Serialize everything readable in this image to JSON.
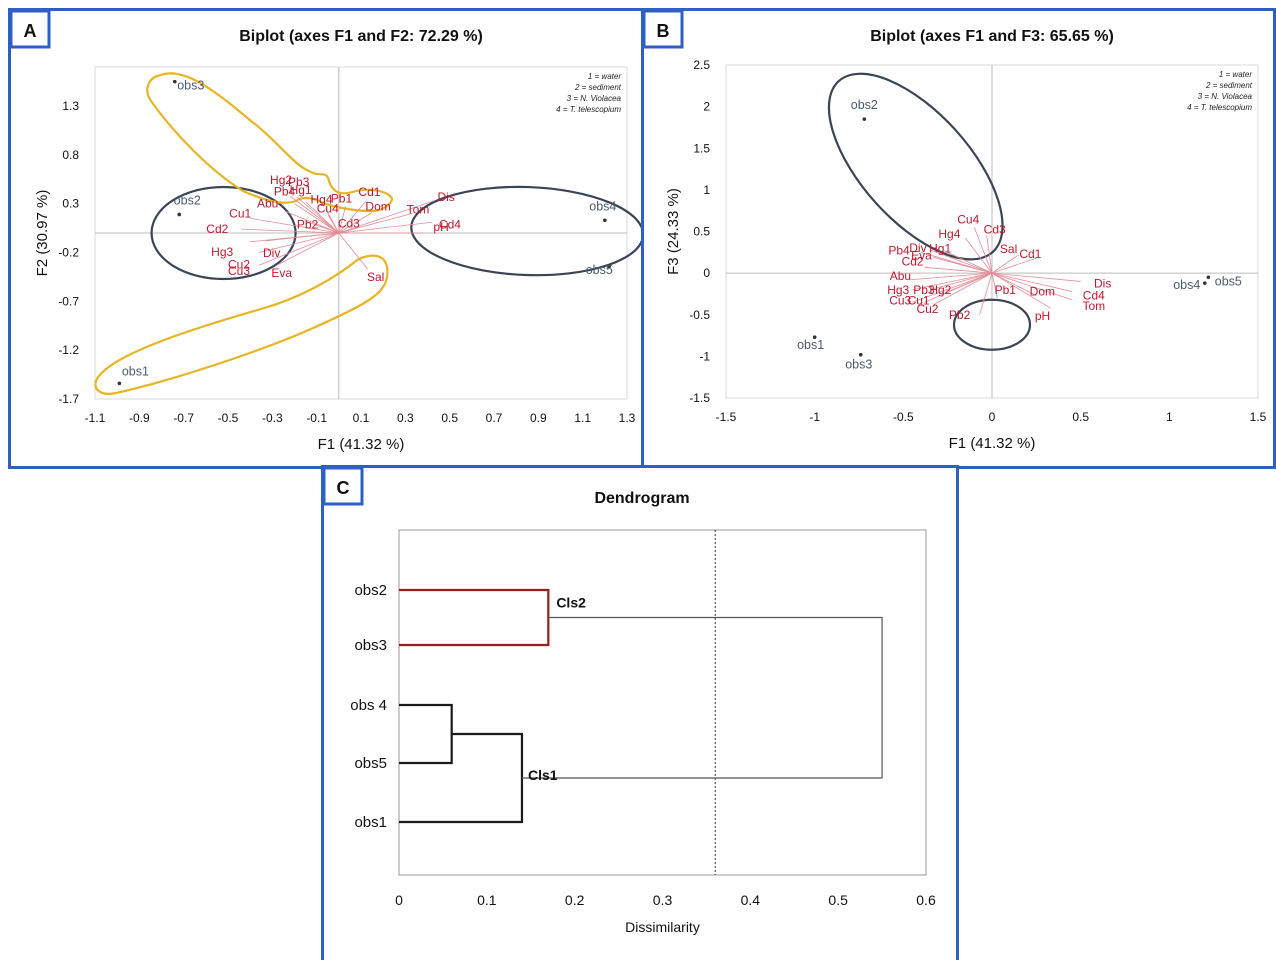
{
  "panels": {
    "A": {
      "letter": "A",
      "title": "Biplot (axes F1 and F2: 72.29 %)",
      "xlabel": "F1 (41.32 %)",
      "ylabel": "F2 (30.97 %)",
      "legend": [
        "1 = water",
        "2 = sediment",
        "3 = N. Violacea",
        "4 = T. telescopium"
      ],
      "xticks": [
        "-1.1",
        "-0.9",
        "-0.7",
        "-0.5",
        "-0.3",
        "-0.1",
        "0.1",
        "0.3",
        "0.5",
        "0.7",
        "0.9",
        "1.1",
        "1.3"
      ],
      "yticks": [
        "1.3",
        "0.8",
        "0.3",
        "-0.2",
        "-0.7",
        "-1.2",
        "-1.7"
      ]
    },
    "B": {
      "letter": "B",
      "title": "Biplot (axes F1 and F3: 65.65 %)",
      "xlabel": "F1 (41.32 %)",
      "ylabel": "F3 (24.33 %)",
      "legend": [
        "1 = water",
        "2 = sediment",
        "3 = N. Violacea",
        "4 = T. telescopium"
      ],
      "xticks": [
        "-1.5",
        "-1",
        "-0.5",
        "0",
        "0.5",
        "1",
        "1.5"
      ],
      "yticks": [
        "2.5",
        "2",
        "1.5",
        "1",
        "0.5",
        "0",
        "-0.5",
        "-1",
        "-1.5"
      ]
    },
    "C": {
      "letter": "C",
      "title": "Dendrogram",
      "xlabel": "Dissimilarity",
      "xticks": [
        "0",
        "0.1",
        "0.2",
        "0.3",
        "0.4",
        "0.5",
        "0.6"
      ],
      "cluster_labels": [
        "Cls2",
        "Cls1"
      ]
    }
  },
  "chart_data": [
    {
      "type": "scatter",
      "panel": "A",
      "title": "Biplot (axes F1 and F2: 72.29 %)",
      "xlabel": "F1 (41.32 %)",
      "ylabel": "F2 (30.97 %)",
      "xlim": [
        -1.1,
        1.3
      ],
      "ylim": [
        -1.7,
        1.7
      ],
      "observations": [
        {
          "label": "obs3",
          "x": -0.74,
          "y": 1.55
        },
        {
          "label": "obs2",
          "x": -0.72,
          "y": 0.19
        },
        {
          "label": "obs1",
          "x": -0.99,
          "y": -1.54
        },
        {
          "label": "obs4",
          "x": 1.2,
          "y": 0.13
        },
        {
          "label": "obs5",
          "x": 1.22,
          "y": -0.34
        }
      ],
      "variables": [
        {
          "label": "Hg2",
          "x": -0.22,
          "y": 0.38
        },
        {
          "label": "Pb3",
          "x": -0.19,
          "y": 0.37
        },
        {
          "label": "Pb4",
          "x": -0.2,
          "y": 0.3
        },
        {
          "label": "Hg1",
          "x": -0.15,
          "y": 0.32
        },
        {
          "label": "Abu",
          "x": -0.24,
          "y": 0.22
        },
        {
          "label": "Hg4",
          "x": -0.06,
          "y": 0.25
        },
        {
          "label": "Pb1",
          "x": 0.03,
          "y": 0.27
        },
        {
          "label": "Cd1",
          "x": 0.12,
          "y": 0.32
        },
        {
          "label": "Dom",
          "x": 0.15,
          "y": 0.21
        },
        {
          "label": "Cu4",
          "x": -0.05,
          "y": 0.19
        },
        {
          "label": "Cd3",
          "x": 0.0,
          "y": 0.12
        },
        {
          "label": "Pb2",
          "x": -0.15,
          "y": 0.12
        },
        {
          "label": "Cu1",
          "x": -0.4,
          "y": 0.15
        },
        {
          "label": "Cd2",
          "x": -0.44,
          "y": 0.04
        },
        {
          "label": "Hg3",
          "x": -0.4,
          "y": -0.09
        },
        {
          "label": "Div",
          "x": -0.33,
          "y": -0.08
        },
        {
          "label": "Cu2",
          "x": -0.36,
          "y": -0.2
        },
        {
          "label": "Cu3",
          "x": -0.36,
          "y": -0.33
        },
        {
          "label": "Eva",
          "x": -0.28,
          "y": -0.33
        },
        {
          "label": "Dis",
          "x": 0.43,
          "y": 0.33
        },
        {
          "label": "Tom",
          "x": 0.33,
          "y": 0.2
        },
        {
          "label": "Cd4",
          "x": 0.42,
          "y": 0.11
        },
        {
          "label": "pH",
          "x": 0.38,
          "y": 0.0
        },
        {
          "label": "Sal",
          "x": 0.13,
          "y": -0.37
        }
      ]
    },
    {
      "type": "scatter",
      "panel": "B",
      "title": "Biplot (axes F1 and F3: 65.65 %)",
      "xlabel": "F1 (41.32 %)",
      "ylabel": "F3 (24.33 %)",
      "xlim": [
        -1.5,
        1.5
      ],
      "ylim": [
        -1.5,
        2.5
      ],
      "observations": [
        {
          "label": "obs2",
          "x": -0.72,
          "y": 1.85
        },
        {
          "label": "obs1",
          "x": -1.0,
          "y": -0.77
        },
        {
          "label": "obs3",
          "x": -0.74,
          "y": -0.98
        },
        {
          "label": "obs4",
          "x": 1.2,
          "y": -0.12
        },
        {
          "label": "obs5",
          "x": 1.22,
          "y": -0.05
        }
      ],
      "variables": [
        {
          "label": "Cu4",
          "x": -0.1,
          "y": 0.55
        },
        {
          "label": "Cd3",
          "x": -0.03,
          "y": 0.45
        },
        {
          "label": "Hg4",
          "x": -0.15,
          "y": 0.42
        },
        {
          "label": "Pb4",
          "x": -0.4,
          "y": 0.25
        },
        {
          "label": "Div",
          "x": -0.35,
          "y": 0.28
        },
        {
          "label": "Hg1",
          "x": -0.27,
          "y": 0.27
        },
        {
          "label": "Eva",
          "x": -0.33,
          "y": 0.19
        },
        {
          "label": "Sal",
          "x": 0.15,
          "y": 0.22
        },
        {
          "label": "Cd1",
          "x": 0.25,
          "y": 0.18
        },
        {
          "label": "Cd2",
          "x": -0.38,
          "y": 0.07
        },
        {
          "label": "Abu",
          "x": -0.46,
          "y": -0.08
        },
        {
          "label": "Hg3",
          "x": -0.45,
          "y": -0.2
        },
        {
          "label": "Pb3",
          "x": -0.35,
          "y": -0.2
        },
        {
          "label": "Hg2",
          "x": -0.28,
          "y": -0.25
        },
        {
          "label": "Cu3",
          "x": -0.45,
          "y": -0.35
        },
        {
          "label": "Cu1",
          "x": -0.38,
          "y": -0.35
        },
        {
          "label": "Cu2",
          "x": -0.33,
          "y": -0.38
        },
        {
          "label": "Pb1",
          "x": 0.03,
          "y": -0.3
        },
        {
          "label": "Pb2",
          "x": -0.07,
          "y": -0.5
        },
        {
          "label": "Dom",
          "x": 0.25,
          "y": -0.27
        },
        {
          "label": "pH",
          "x": 0.33,
          "y": -0.42
        },
        {
          "label": "Tom",
          "x": 0.45,
          "y": -0.32
        },
        {
          "label": "Cd4",
          "x": 0.45,
          "y": -0.22
        },
        {
          "label": "Dis",
          "x": 0.5,
          "y": -0.1
        }
      ]
    },
    {
      "type": "dendrogram",
      "panel": "C",
      "title": "Dendrogram",
      "xlabel": "Dissimilarity",
      "xlim": [
        0,
        0.6
      ],
      "threshold": 0.36,
      "leaves": [
        "obs2",
        "obs3",
        "obs 4",
        "obs5",
        "obs1"
      ],
      "merges": [
        {
          "a": "obs2",
          "b": "obs3",
          "height": 0.17,
          "label": "Cls2"
        },
        {
          "a": "obs 4",
          "b": "obs5",
          "height": 0.06
        },
        {
          "a": "obs4-obs5",
          "b": "obs1",
          "height": 0.14,
          "label": "Cls1"
        },
        {
          "a": "Cls2",
          "b": "Cls1",
          "height": 0.55
        }
      ]
    }
  ],
  "colors": {
    "border": "#2f5fc4",
    "variable": "#c0182e",
    "observation": "#4a5a72",
    "ellipse_dark": "#3a4556",
    "ellipse_yellow": "#e8b423",
    "cls2": "#9b1c1c",
    "cls1": "#1a1a1a"
  }
}
